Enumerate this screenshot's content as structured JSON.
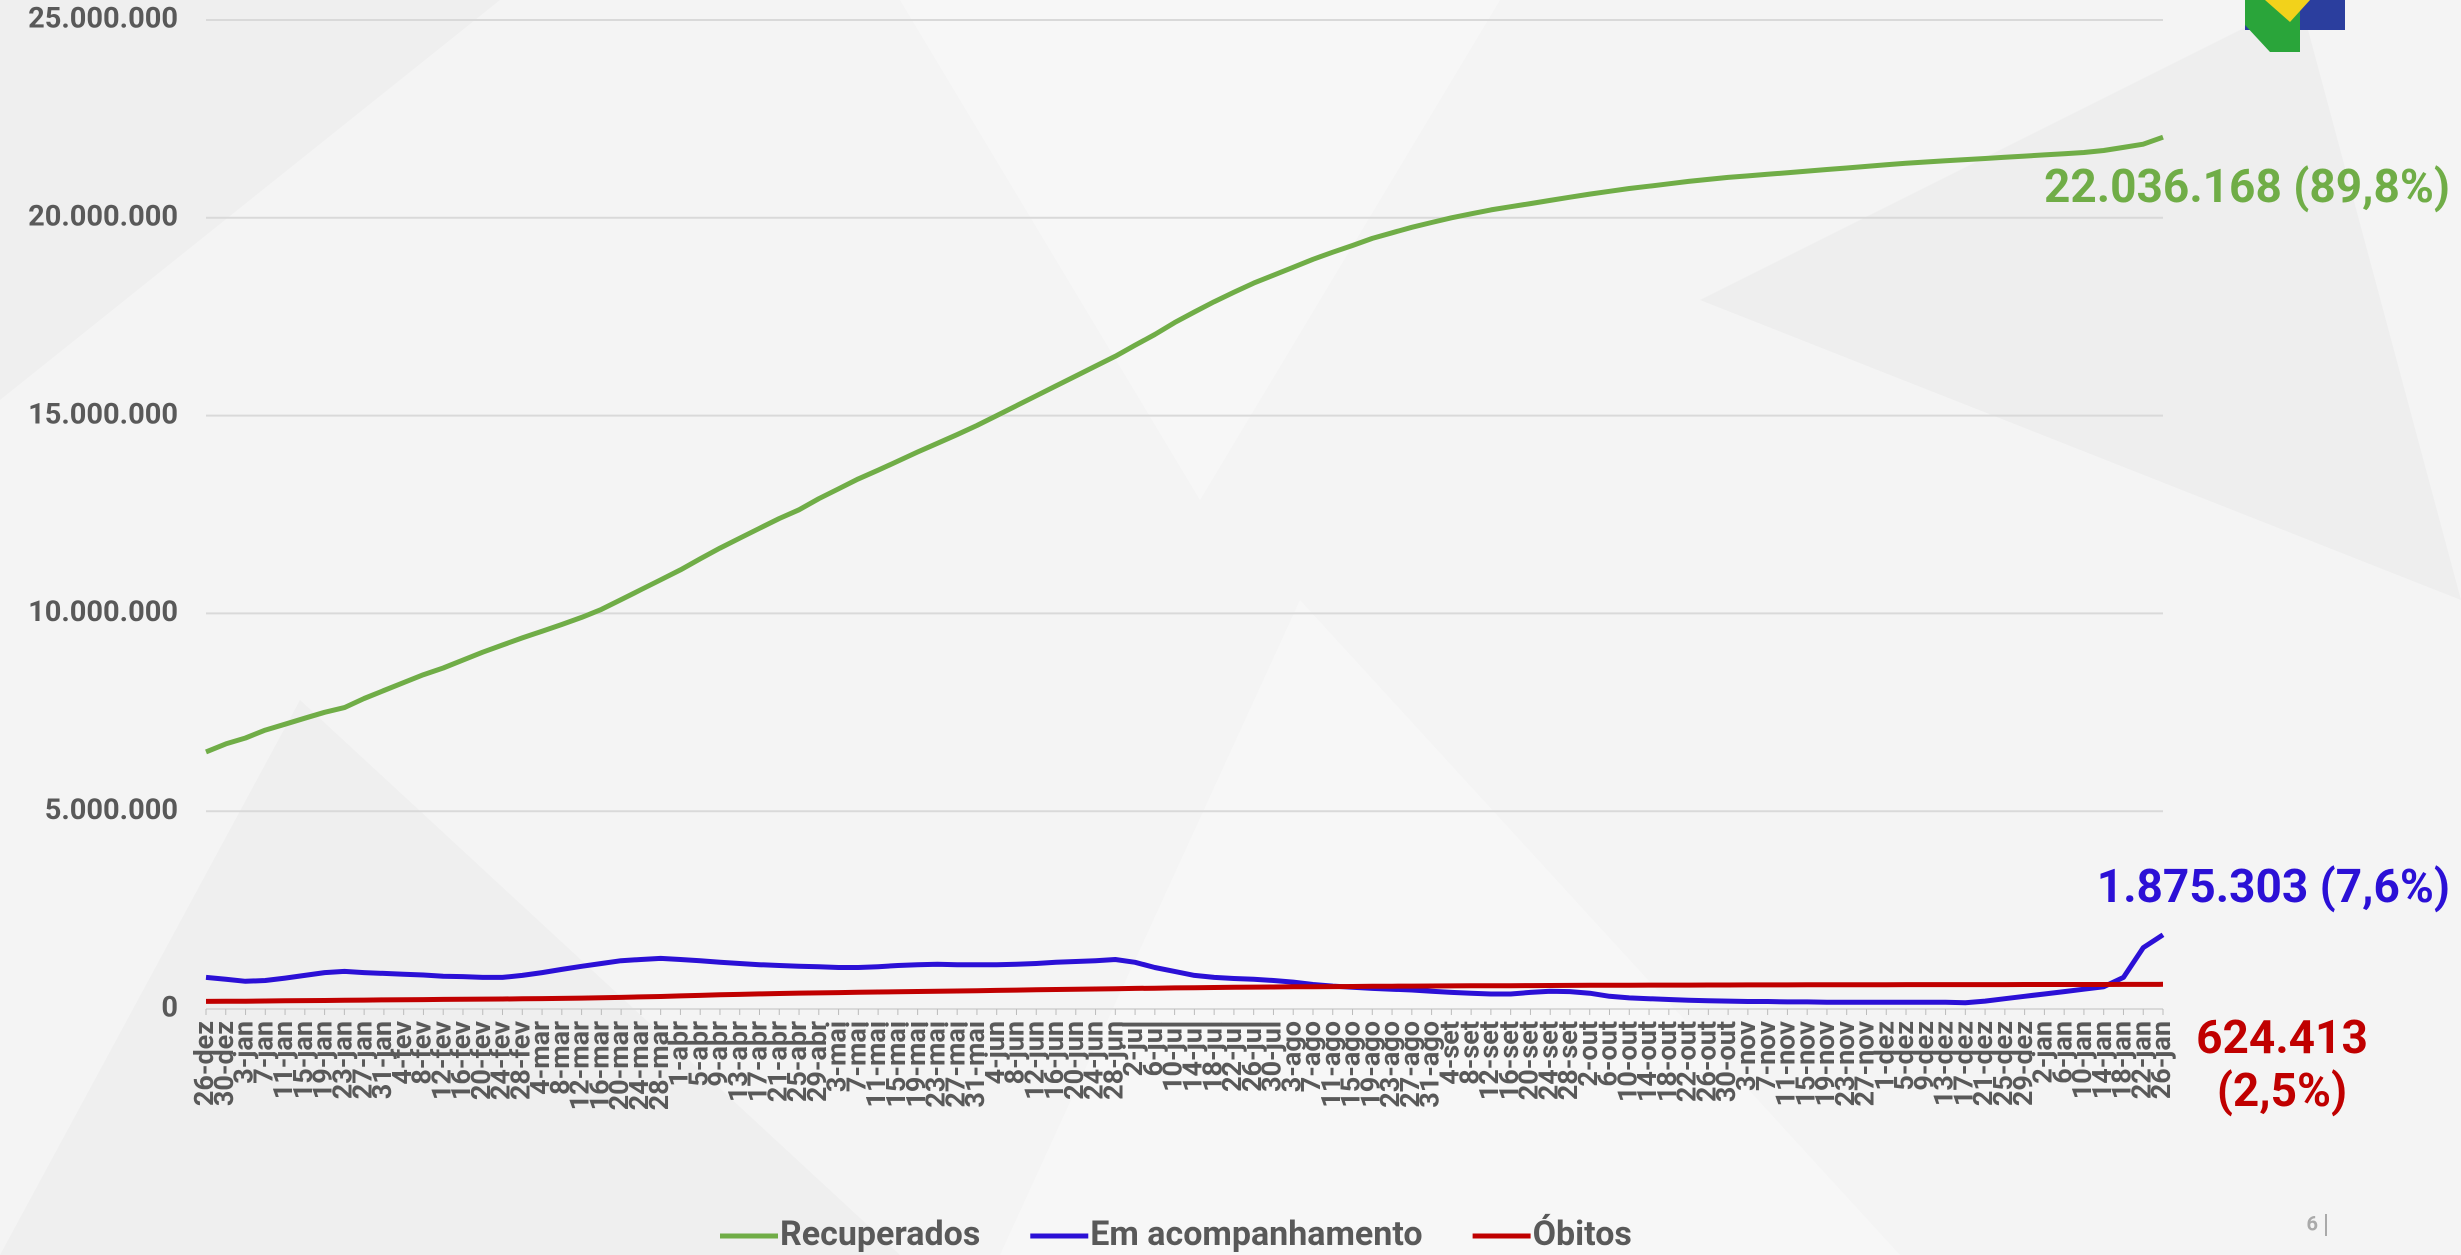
{
  "chart_data": {
    "type": "line",
    "categories": [
      "26-dez",
      "30-dez",
      "3-jan",
      "7-jan",
      "11-jan",
      "15-jan",
      "19-jan",
      "23-jan",
      "27-jan",
      "31-jan",
      "4-fev",
      "8-fev",
      "12-fev",
      "16-fev",
      "20-fev",
      "24-fev",
      "28-fev",
      "4-mar",
      "8-mar",
      "12-mar",
      "16-mar",
      "20-mar",
      "24-mar",
      "28-mar",
      "1-abr",
      "5-abr",
      "9-abr",
      "13-abr",
      "17-abr",
      "21-abr",
      "25-abr",
      "29-abr",
      "3-mai",
      "7-mai",
      "11-mai",
      "15-mai",
      "19-mai",
      "23-mai",
      "27-mai",
      "31-mai",
      "4-jun",
      "8-jun",
      "12-jun",
      "16-jun",
      "20-jun",
      "24-jun",
      "28-jun",
      "2-jul",
      "6-jul",
      "10-jul",
      "14-jul",
      "18-jul",
      "22-jul",
      "26-jul",
      "30-jul",
      "3-ago",
      "7-ago",
      "11-ago",
      "15-ago",
      "19-ago",
      "23-ago",
      "27-ago",
      "31-ago",
      "4-set",
      "8-set",
      "12-set",
      "16-set",
      "20-set",
      "24-set",
      "28-set",
      "2-out",
      "6-out",
      "10-out",
      "14-out",
      "18-out",
      "22-out",
      "26-out",
      "30-out",
      "3-nov",
      "7-nov",
      "11-nov",
      "15-nov",
      "19-nov",
      "23-nov",
      "27-nov",
      "1-dez",
      "5-dez",
      "9-dez",
      "13-dez",
      "17-dez",
      "21-dez",
      "25-dez",
      "29-dez",
      "2-jan",
      "6-jan",
      "10-jan",
      "14-jan",
      "18-jan",
      "22-jan",
      "26-jan"
    ],
    "series": [
      {
        "name": "Recuperados",
        "color": "#70ad47",
        "values": [
          6500000,
          6700000,
          6850000,
          7050000,
          7200000,
          7350000,
          7500000,
          7620000,
          7850000,
          8050000,
          8250000,
          8450000,
          8620000,
          8820000,
          9020000,
          9200000,
          9380000,
          9550000,
          9720000,
          9900000,
          10100000,
          10350000,
          10600000,
          10850000,
          11100000,
          11380000,
          11650000,
          11900000,
          12150000,
          12400000,
          12620000,
          12900000,
          13150000,
          13400000,
          13620000,
          13850000,
          14080000,
          14300000,
          14520000,
          14750000,
          15000000,
          15250000,
          15500000,
          15750000,
          16000000,
          16250000,
          16500000,
          16780000,
          17050000,
          17350000,
          17620000,
          17880000,
          18120000,
          18350000,
          18550000,
          18750000,
          18950000,
          19130000,
          19300000,
          19480000,
          19620000,
          19760000,
          19880000,
          20000000,
          20100000,
          20200000,
          20280000,
          20360000,
          20440000,
          20520000,
          20600000,
          20670000,
          20740000,
          20800000,
          20860000,
          20920000,
          20970000,
          21020000,
          21060000,
          21100000,
          21140000,
          21180000,
          21220000,
          21260000,
          21300000,
          21340000,
          21380000,
          21410000,
          21440000,
          21470000,
          21500000,
          21530000,
          21560000,
          21590000,
          21620000,
          21650000,
          21700000,
          21780000,
          21860000,
          22036168
        ],
        "value_labels": [
          null,
          null,
          null,
          null,
          null,
          null,
          null,
          null,
          null,
          null,
          null,
          null,
          null,
          null,
          null,
          null,
          null,
          null,
          null,
          null,
          null,
          null,
          null,
          null,
          null,
          null,
          null,
          null,
          null,
          null,
          null,
          null,
          null,
          null,
          null,
          null,
          null,
          null,
          null,
          null,
          null,
          null,
          null,
          null,
          null,
          null,
          null,
          null,
          null,
          null,
          null,
          null,
          null,
          null,
          null,
          null,
          null,
          null,
          null,
          null,
          null,
          null,
          null,
          null,
          null,
          null,
          null,
          null,
          null,
          null,
          null,
          null,
          null,
          null,
          null,
          null,
          null,
          null,
          null,
          null,
          null,
          null,
          null,
          null,
          null,
          null,
          null,
          null,
          null,
          null,
          null,
          null,
          null,
          null,
          null,
          null,
          null,
          null,
          null,
          "22.036.168 (89,8%)"
        ]
      },
      {
        "name": "Em acompanhamento",
        "color": "#2b10d6",
        "values": [
          800000,
          750000,
          700000,
          720000,
          780000,
          850000,
          920000,
          950000,
          920000,
          900000,
          880000,
          860000,
          830000,
          820000,
          800000,
          800000,
          850000,
          920000,
          1000000,
          1080000,
          1150000,
          1220000,
          1250000,
          1280000,
          1250000,
          1220000,
          1180000,
          1150000,
          1120000,
          1100000,
          1080000,
          1070000,
          1050000,
          1050000,
          1070000,
          1100000,
          1120000,
          1130000,
          1120000,
          1120000,
          1120000,
          1130000,
          1150000,
          1180000,
          1200000,
          1220000,
          1250000,
          1180000,
          1050000,
          950000,
          850000,
          800000,
          770000,
          750000,
          720000,
          680000,
          620000,
          580000,
          550000,
          520000,
          500000,
          480000,
          450000,
          420000,
          400000,
          380000,
          380000,
          420000,
          450000,
          440000,
          400000,
          320000,
          280000,
          260000,
          240000,
          220000,
          210000,
          200000,
          190000,
          190000,
          180000,
          180000,
          170000,
          170000,
          170000,
          170000,
          170000,
          170000,
          170000,
          160000,
          200000,
          260000,
          320000,
          380000,
          440000,
          500000,
          560000,
          800000,
          1550000,
          1875303
        ],
        "value_labels": [
          null,
          null,
          null,
          null,
          null,
          null,
          null,
          null,
          null,
          null,
          null,
          null,
          null,
          null,
          null,
          null,
          null,
          null,
          null,
          null,
          null,
          null,
          null,
          null,
          null,
          null,
          null,
          null,
          null,
          null,
          null,
          null,
          null,
          null,
          null,
          null,
          null,
          null,
          null,
          null,
          null,
          null,
          null,
          null,
          null,
          null,
          null,
          null,
          null,
          null,
          null,
          null,
          null,
          null,
          null,
          null,
          null,
          null,
          null,
          null,
          null,
          null,
          null,
          null,
          null,
          null,
          null,
          null,
          null,
          null,
          null,
          null,
          null,
          null,
          null,
          null,
          null,
          null,
          null,
          null,
          null,
          null,
          null,
          null,
          null,
          null,
          null,
          null,
          null,
          null,
          null,
          null,
          null,
          null,
          null,
          null,
          null,
          null,
          null,
          "1.875.303 (7,6%)"
        ]
      },
      {
        "name": "Óbitos",
        "color": "#c00000",
        "values": [
          192000,
          195000,
          198000,
          203000,
          207000,
          212000,
          216000,
          221000,
          225000,
          230000,
          234000,
          238000,
          242000,
          246000,
          250000,
          254000,
          257000,
          262000,
          268000,
          275000,
          284000,
          294000,
          305000,
          317000,
          330000,
          345000,
          358000,
          370000,
          382000,
          393000,
          403000,
          408000,
          415000,
          422000,
          430000,
          436000,
          442000,
          449000,
          456000,
          462000,
          470000,
          477000,
          485000,
          492000,
          500000,
          506000,
          512000,
          520000,
          527000,
          533000,
          539000,
          544000,
          549000,
          553000,
          556000,
          560000,
          563000,
          567000,
          570000,
          573000,
          576000,
          579000,
          582000,
          584000,
          586000,
          588000,
          589000,
          591000,
          594000,
          596000,
          598000,
          600000,
          601000,
          603000,
          604000,
          605000,
          606000,
          607000,
          608000,
          609000,
          610000,
          611000,
          612000,
          613000,
          614000,
          615000,
          616000,
          616000,
          617000,
          617000,
          618000,
          618000,
          619000,
          619000,
          619000,
          620000,
          620000,
          621000,
          622000,
          624413
        ],
        "value_labels": [
          null,
          null,
          null,
          null,
          null,
          null,
          null,
          null,
          null,
          null,
          null,
          null,
          null,
          null,
          null,
          null,
          null,
          null,
          null,
          null,
          null,
          null,
          null,
          null,
          null,
          null,
          null,
          null,
          null,
          null,
          null,
          null,
          null,
          null,
          null,
          null,
          null,
          null,
          null,
          null,
          null,
          null,
          null,
          null,
          null,
          null,
          null,
          null,
          null,
          null,
          null,
          null,
          null,
          null,
          null,
          null,
          null,
          null,
          null,
          null,
          null,
          null,
          null,
          null,
          null,
          null,
          null,
          null,
          null,
          null,
          null,
          null,
          null,
          null,
          null,
          null,
          null,
          null,
          null,
          null,
          null,
          null,
          null,
          null,
          null,
          null,
          null,
          null,
          null,
          null,
          null,
          null,
          null,
          null,
          null,
          null,
          null,
          null,
          null,
          "624.413 (2,5%)"
        ]
      }
    ],
    "ylim": [
      0,
      25000000
    ],
    "yticks": [
      0,
      {
        "value": 5000000,
        "label": "5.000.000"
      },
      {
        "value": 10000000,
        "label": "10.000.000"
      },
      {
        "value": 15000000,
        "label": "15.000.000"
      },
      {
        "value": 20000000,
        "label": "20.000.000"
      },
      {
        "value": 25000000,
        "label": "25.000.000"
      }
    ],
    "grid": true,
    "legend": "bottom"
  },
  "page_number": "6"
}
